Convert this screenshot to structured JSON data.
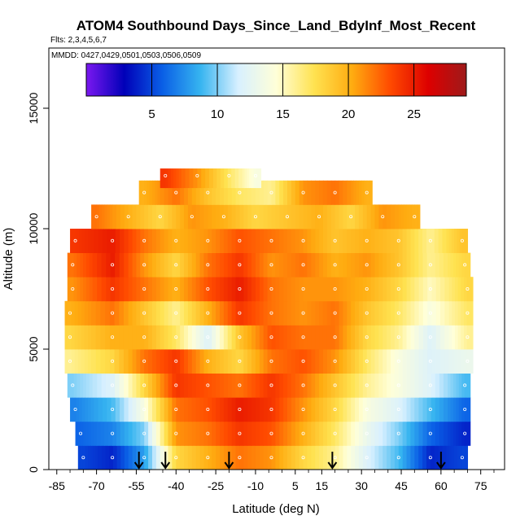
{
  "chart_data": {
    "type": "heatmap",
    "title": "ATOM4 Southbound Days_Since_Land_BdyInf_Most_Recent",
    "subtitle": "Flts: 2,3,4,5,6,7",
    "annotation": "MMDD: 0427,0429,0501,0503,0506,0509",
    "xlabel": "Latitude (deg N)",
    "ylabel": "Altitude (m)",
    "xlim": [
      -88,
      84
    ],
    "ylim": [
      0,
      17500
    ],
    "x_ticks": [
      -85,
      -70,
      -55,
      -40,
      -25,
      -10,
      5,
      15,
      30,
      45,
      60,
      75
    ],
    "y_ticks": [
      0,
      5000,
      10000,
      15000
    ],
    "colorbar": {
      "range": [
        0,
        29
      ],
      "ticks": [
        5,
        10,
        15,
        20,
        25
      ],
      "colors": [
        "#7b18f0",
        "#0000b8",
        "#0a5fe6",
        "#36b4f0",
        "#d8f0ff",
        "#ffffd8",
        "#ffe250",
        "#ffab10",
        "#ff4a00",
        "#dd0000",
        "#9e1a1a"
      ]
    },
    "profile_markers_lat": [
      -54,
      -44,
      -20,
      19,
      60
    ],
    "altitude_bands_m": [
      {
        "alt": 500,
        "lat": [
          -75,
          -64,
          -52,
          -40,
          -28,
          -16,
          -4,
          8,
          20,
          32,
          44,
          56,
          68
        ],
        "val": [
          5,
          4,
          8,
          18,
          20,
          22,
          21,
          18,
          16,
          12,
          9,
          4,
          5
        ]
      },
      {
        "alt": 1500,
        "lat": [
          -76,
          -64,
          -52,
          -40,
          -28,
          -16,
          -4,
          8,
          20,
          32,
          44,
          56,
          69
        ],
        "val": [
          6,
          7,
          10,
          21,
          22,
          24,
          23,
          20,
          17,
          13,
          10,
          6,
          4
        ]
      },
      {
        "alt": 2500,
        "lat": [
          -78,
          -64,
          -52,
          -40,
          -28,
          -16,
          -4,
          8,
          20,
          32,
          44,
          56,
          69
        ],
        "val": [
          7,
          9,
          14,
          22,
          23,
          25,
          24,
          21,
          18,
          14,
          12,
          9,
          6
        ]
      },
      {
        "alt": 3500,
        "lat": [
          -79,
          -64,
          -52,
          -40,
          -28,
          -16,
          -4,
          8,
          20,
          32,
          44,
          56,
          69
        ],
        "val": [
          10,
          12,
          18,
          24,
          23,
          22,
          24,
          22,
          19,
          16,
          14,
          12,
          9
        ]
      },
      {
        "alt": 4500,
        "lat": [
          -80,
          -64,
          -52,
          -40,
          -28,
          -16,
          -4,
          8,
          20,
          32,
          44,
          56,
          70
        ],
        "val": [
          16,
          18,
          22,
          24,
          20,
          18,
          22,
          23,
          21,
          17,
          14,
          12,
          13
        ]
      },
      {
        "alt": 5500,
        "lat": [
          -80,
          -64,
          -52,
          -40,
          -28,
          -16,
          -4,
          8,
          20,
          32,
          44,
          56,
          70
        ],
        "val": [
          18,
          20,
          20,
          17,
          12,
          19,
          23,
          22,
          22,
          18,
          16,
          12,
          16
        ]
      },
      {
        "alt": 6500,
        "lat": [
          -80,
          -64,
          -52,
          -40,
          -28,
          -16,
          -4,
          8,
          20,
          32,
          44,
          56,
          70
        ],
        "val": [
          20,
          22,
          19,
          16,
          20,
          24,
          22,
          21,
          22,
          19,
          17,
          14,
          17
        ]
      },
      {
        "alt": 7500,
        "lat": [
          -79,
          -64,
          -52,
          -40,
          -28,
          -16,
          -4,
          8,
          20,
          32,
          44,
          56,
          70
        ],
        "val": [
          21,
          24,
          22,
          20,
          23,
          25,
          22,
          21,
          21,
          20,
          18,
          15,
          18
        ]
      },
      {
        "alt": 8500,
        "lat": [
          -79,
          -64,
          -52,
          -40,
          -28,
          -16,
          -4,
          8,
          20,
          32,
          44,
          56,
          69
        ],
        "val": [
          22,
          25,
          21,
          18,
          22,
          24,
          21,
          22,
          20,
          21,
          19,
          16,
          18
        ]
      },
      {
        "alt": 9500,
        "lat": [
          -78,
          -64,
          -52,
          -40,
          -28,
          -16,
          -4,
          8,
          20,
          32,
          44,
          56,
          68
        ],
        "val": [
          24,
          25,
          22,
          20,
          21,
          23,
          22,
          21,
          19,
          20,
          19,
          16,
          19
        ]
      },
      {
        "alt": 10500,
        "lat": [
          -70,
          -58,
          -46,
          -34,
          -22,
          -10,
          2,
          14,
          26,
          38,
          50
        ],
        "val": [
          22,
          20,
          18,
          21,
          20,
          18,
          19,
          20,
          18,
          21,
          20
        ]
      },
      {
        "alt": 11500,
        "lat": [
          -52,
          -40,
          -28,
          -16,
          -4,
          8,
          20,
          32
        ],
        "val": [
          20,
          22,
          19,
          17,
          16,
          21,
          22,
          20
        ]
      },
      {
        "alt": 12200,
        "lat": [
          -44,
          -32,
          -20,
          -10
        ],
        "val": [
          24,
          21,
          17,
          14
        ]
      }
    ]
  }
}
